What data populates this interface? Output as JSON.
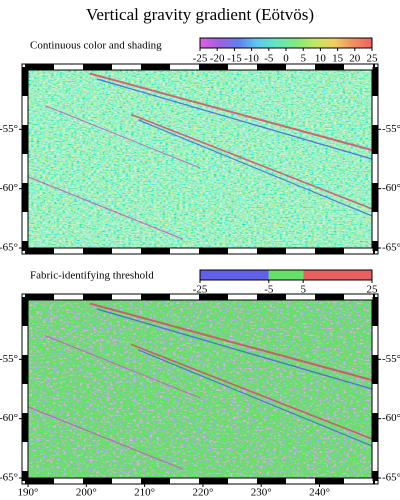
{
  "title": "Vertical gravity gradient (Eötvös)",
  "panels": [
    {
      "label": "Continuous color and shading",
      "colorbar": {
        "type": "continuous",
        "lim": [
          -25,
          25
        ],
        "ticks": [
          -25,
          -20,
          -15,
          -10,
          -5,
          0,
          5,
          10,
          15,
          20,
          25
        ],
        "colors": [
          "#e060e0",
          "#a060e0",
          "#6080f0",
          "#60c8f0",
          "#60e8c0",
          "#80e880",
          "#c0e860",
          "#f0d060",
          "#f09060",
          "#f06060"
        ]
      },
      "map": {
        "xlim": [
          190,
          249
        ],
        "ylim": [
          -65,
          -50
        ],
        "yticks": [
          {
            "value": -55,
            "label": "-55°"
          },
          {
            "value": -60,
            "label": "-60°"
          },
          {
            "value": -65,
            "label": "-65°"
          }
        ]
      }
    },
    {
      "label": "Fabric-identifying threshold",
      "colorbar": {
        "type": "discrete",
        "lim": [
          -25,
          25
        ],
        "ticks": [
          -25,
          -5,
          5,
          25
        ],
        "colors": [
          "#6060e8",
          "#66e066",
          "#e86060"
        ]
      },
      "map": {
        "xlim": [
          190,
          249
        ],
        "ylim": [
          -65,
          -50
        ],
        "yticks": [
          {
            "value": -55,
            "label": "-55°"
          },
          {
            "value": -60,
            "label": "-60°"
          },
          {
            "value": -65,
            "label": "-65°"
          }
        ],
        "xticks": [
          {
            "value": 190,
            "label": "190°"
          },
          {
            "value": 200,
            "label": "200°"
          },
          {
            "value": 210,
            "label": "210°"
          },
          {
            "value": 220,
            "label": "220°"
          },
          {
            "value": 230,
            "label": "230°"
          },
          {
            "value": 240,
            "label": "240°"
          }
        ]
      }
    }
  ]
}
